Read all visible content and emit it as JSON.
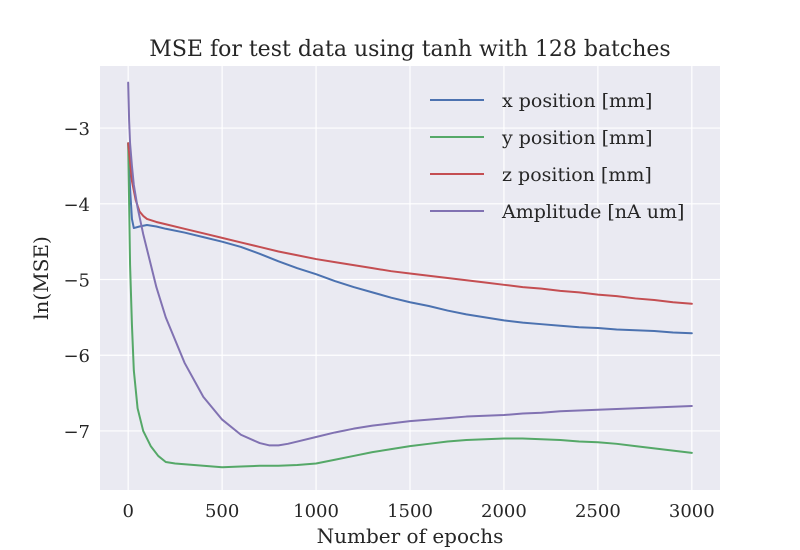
{
  "chart_data": {
    "type": "line",
    "title": "MSE for test data using tanh with 128 batches",
    "xlabel": "Number of epochs",
    "ylabel": "ln(MSE)",
    "xlim": [
      -150,
      3150
    ],
    "ylim": [
      -7.78,
      -2.18
    ],
    "xticks": [
      0,
      500,
      1000,
      1500,
      2000,
      2500,
      3000
    ],
    "xtick_labels": [
      "0",
      "500",
      "1000",
      "1500",
      "2000",
      "2500",
      "3000"
    ],
    "yticks": [
      -3,
      -4,
      -5,
      -6,
      -7
    ],
    "ytick_labels": [
      "−3",
      "−4",
      "−5",
      "−6",
      "−7"
    ],
    "grid": true,
    "legend_position": "top-right",
    "series": [
      {
        "name": "x position [mm]",
        "color": "#4c72b0",
        "x": [
          0,
          10,
          20,
          30,
          60,
          100,
          150,
          200,
          300,
          400,
          500,
          600,
          700,
          800,
          900,
          1000,
          1100,
          1200,
          1300,
          1400,
          1500,
          1600,
          1700,
          1800,
          1900,
          2000,
          2100,
          2200,
          2300,
          2400,
          2500,
          2600,
          2700,
          2800,
          2900,
          3000
        ],
        "y": [
          -3.2,
          -3.8,
          -4.2,
          -4.32,
          -4.3,
          -4.28,
          -4.3,
          -4.33,
          -4.38,
          -4.44,
          -4.5,
          -4.57,
          -4.66,
          -4.76,
          -4.85,
          -4.93,
          -5.02,
          -5.1,
          -5.17,
          -5.24,
          -5.3,
          -5.35,
          -5.41,
          -5.46,
          -5.5,
          -5.54,
          -5.57,
          -5.59,
          -5.61,
          -5.63,
          -5.64,
          -5.66,
          -5.67,
          -5.68,
          -5.7,
          -5.71
        ]
      },
      {
        "name": "y position [mm]",
        "color": "#55a868",
        "x": [
          0,
          5,
          10,
          20,
          30,
          50,
          80,
          120,
          160,
          200,
          250,
          300,
          400,
          500,
          600,
          700,
          800,
          900,
          1000,
          1100,
          1200,
          1300,
          1400,
          1500,
          1600,
          1700,
          1800,
          1900,
          2000,
          2100,
          2200,
          2300,
          2400,
          2500,
          2600,
          2700,
          2800,
          2900,
          3000
        ],
        "y": [
          -3.2,
          -4.0,
          -4.8,
          -5.6,
          -6.2,
          -6.7,
          -7.0,
          -7.2,
          -7.33,
          -7.41,
          -7.43,
          -7.44,
          -7.46,
          -7.48,
          -7.47,
          -7.46,
          -7.46,
          -7.45,
          -7.43,
          -7.38,
          -7.33,
          -7.28,
          -7.24,
          -7.2,
          -7.17,
          -7.14,
          -7.12,
          -7.11,
          -7.1,
          -7.1,
          -7.11,
          -7.12,
          -7.14,
          -7.15,
          -7.17,
          -7.2,
          -7.23,
          -7.26,
          -7.29
        ]
      },
      {
        "name": "z position [mm]",
        "color": "#c44e52",
        "x": [
          0,
          10,
          20,
          40,
          60,
          80,
          100,
          150,
          200,
          300,
          400,
          500,
          600,
          700,
          800,
          900,
          1000,
          1100,
          1200,
          1300,
          1400,
          1500,
          1600,
          1700,
          1800,
          1900,
          2000,
          2100,
          2200,
          2300,
          2400,
          2500,
          2600,
          2700,
          2800,
          2900,
          3000
        ],
        "y": [
          -3.2,
          -3.45,
          -3.7,
          -3.95,
          -4.1,
          -4.16,
          -4.2,
          -4.24,
          -4.27,
          -4.33,
          -4.39,
          -4.45,
          -4.51,
          -4.57,
          -4.63,
          -4.68,
          -4.73,
          -4.77,
          -4.81,
          -4.85,
          -4.89,
          -4.92,
          -4.95,
          -4.98,
          -5.01,
          -5.04,
          -5.07,
          -5.1,
          -5.12,
          -5.15,
          -5.17,
          -5.2,
          -5.22,
          -5.25,
          -5.27,
          -5.3,
          -5.32
        ]
      },
      {
        "name": "Amplitude [nA um]",
        "color": "#8172b2",
        "x": [
          0,
          5,
          10,
          20,
          30,
          50,
          80,
          100,
          150,
          200,
          300,
          400,
          500,
          600,
          700,
          750,
          800,
          850,
          900,
          1000,
          1100,
          1200,
          1300,
          1400,
          1500,
          1600,
          1700,
          1800,
          1900,
          2000,
          2100,
          2200,
          2300,
          2400,
          2500,
          2600,
          2700,
          2800,
          2900,
          3000
        ],
        "y": [
          -2.4,
          -2.9,
          -3.2,
          -3.5,
          -3.75,
          -4.05,
          -4.4,
          -4.6,
          -5.1,
          -5.5,
          -6.1,
          -6.55,
          -6.85,
          -7.05,
          -7.16,
          -7.19,
          -7.19,
          -7.17,
          -7.14,
          -7.08,
          -7.02,
          -6.97,
          -6.93,
          -6.9,
          -6.87,
          -6.85,
          -6.83,
          -6.81,
          -6.8,
          -6.79,
          -6.77,
          -6.76,
          -6.74,
          -6.73,
          -6.72,
          -6.71,
          -6.7,
          -6.69,
          -6.68,
          -6.67
        ]
      }
    ]
  }
}
